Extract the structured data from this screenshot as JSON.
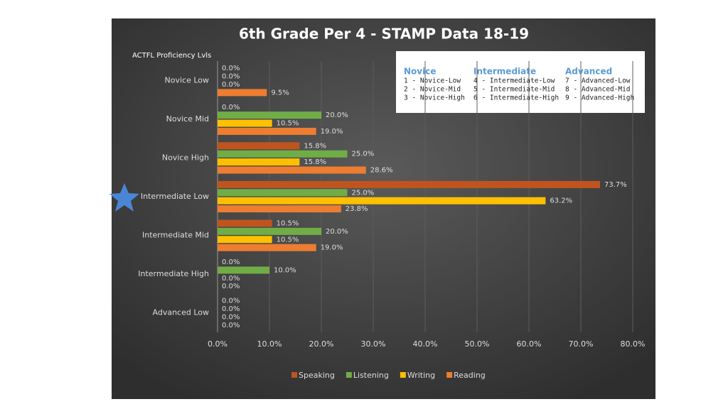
{
  "chart_data": {
    "type": "hbar",
    "title": "6th Grade Per 4 - STAMP Data 18-19",
    "y_axis_label": "ACTFL Proficiency Lvls",
    "categories": [
      "Novice Low",
      "Novice Mid",
      "Novice High",
      "Intermediate Low",
      "Intermediate Mid",
      "Intermediate High",
      "Advanced Low"
    ],
    "series": [
      {
        "name": "Speaking",
        "color": "#c0541f",
        "values": [
          0,
          0,
          15.8,
          73.7,
          10.5,
          0,
          0
        ],
        "value_labels": [
          "0.0%",
          "0.0%",
          "15.8%",
          "73.7%",
          "10.5%",
          "0.0%",
          "0.0%"
        ]
      },
      {
        "name": "Listening",
        "color": "#70ad47",
        "values": [
          0,
          20,
          25,
          25,
          20,
          10,
          0
        ],
        "value_labels": [
          "0.0%",
          "20.0%",
          "25.0%",
          "25.0%",
          "20.0%",
          "10.0%",
          "0.0%"
        ]
      },
      {
        "name": "Writing",
        "color": "#ffc000",
        "values": [
          0,
          10.5,
          15.8,
          63.2,
          10.5,
          0,
          0
        ],
        "value_labels": [
          "0.0%",
          "10.5%",
          "15.8%",
          "63.2%",
          "10.5%",
          "0.0%",
          "0.0%"
        ]
      },
      {
        "name": "Reading",
        "color": "#ed7d31",
        "values": [
          9.5,
          19,
          28.6,
          23.8,
          19,
          0,
          0
        ],
        "value_labels": [
          "9.5%",
          "19.0%",
          "28.6%",
          "23.8%",
          "19.0%",
          "0.0%",
          "0.0%"
        ]
      }
    ],
    "xlim": [
      0,
      80
    ],
    "xticks": [
      {
        "value": 0,
        "label": "0.0%"
      },
      {
        "value": 10,
        "label": "10.0%"
      },
      {
        "value": 20,
        "label": "20.0%"
      },
      {
        "value": 30,
        "label": "30.0%"
      },
      {
        "value": 40,
        "label": "40.0%"
      },
      {
        "value": 50,
        "label": "50.0%"
      },
      {
        "value": 60,
        "label": "60.0%"
      },
      {
        "value": 70,
        "label": "70.0%"
      },
      {
        "value": 80,
        "label": "80.0%"
      }
    ],
    "grid": true,
    "legend": "bottom",
    "level_key": [
      {
        "heading": "Novice",
        "items": [
          "1 - Novice-Low",
          "2 - Novice-Mid",
          "3 - Novice-High"
        ]
      },
      {
        "heading": "Intermediate",
        "items": [
          "4 - Intermediate-Low",
          "5 - Intermediate-Mid",
          "6 - Intermediate-High"
        ]
      },
      {
        "heading": "Advanced",
        "items": [
          "7 - Advanced-Low",
          "8 - Advanced-Mid",
          "9 - Advanced-High"
        ]
      }
    ]
  }
}
